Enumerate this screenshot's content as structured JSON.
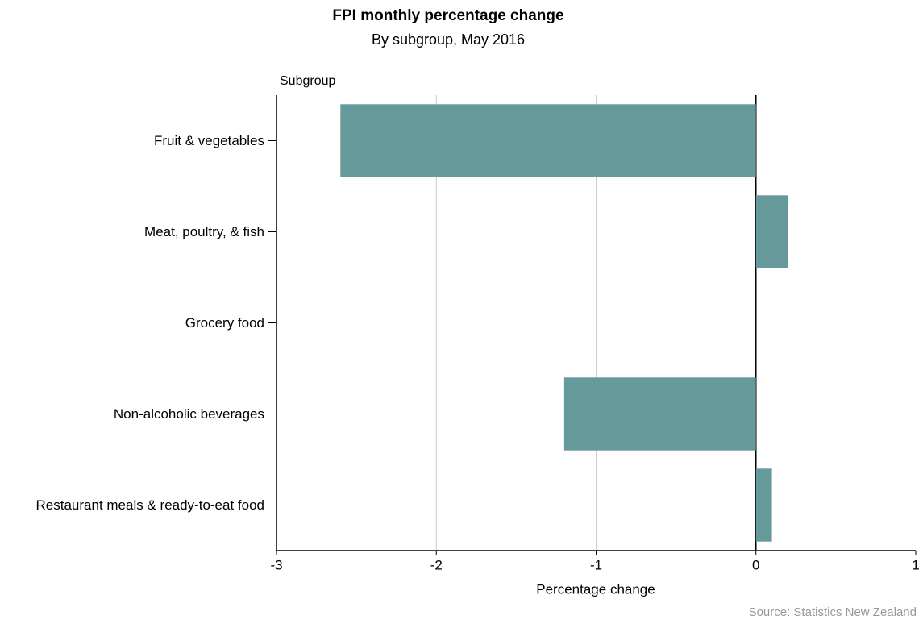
{
  "chart_data": {
    "type": "hbar",
    "title": "FPI monthly percentage change",
    "subtitle": "By subgroup, May 2016",
    "y_label": "Subgroup",
    "x_label": "Percentage change",
    "source": "Source: Statistics New Zealand",
    "categories": [
      "Fruit & vegetables",
      "Meat, poultry, & fish",
      "Grocery food",
      "Non-alcoholic beverages",
      "Restaurant meals & ready-to-eat food"
    ],
    "values": [
      -2.6,
      0.2,
      0.0,
      -1.2,
      0.1
    ],
    "color": "#669999",
    "xlim": [
      -3,
      1
    ],
    "xticks": [
      -3,
      -2,
      -1,
      0,
      1
    ],
    "grid": true
  }
}
